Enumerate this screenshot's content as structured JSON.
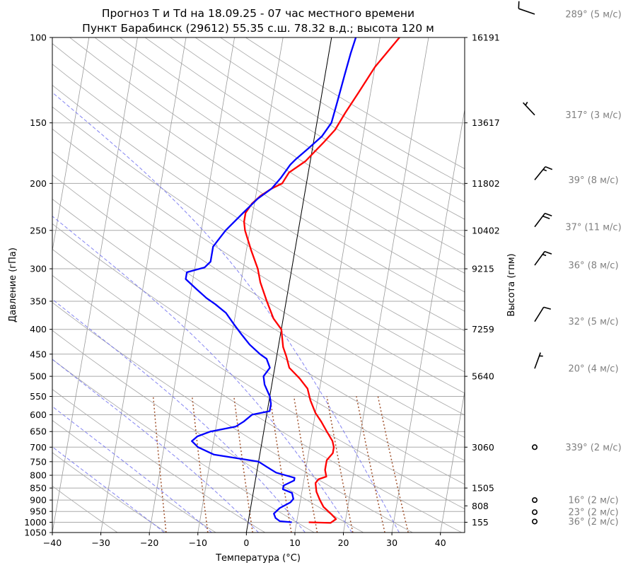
{
  "chart_data": {
    "type": "line",
    "diagram": "skew-T log-P",
    "title": "Прогноз T и Td на 18.09.25 - 07 час местного времени",
    "subtitle": "Пункт Барабинск (29612) 55.35 с.ш. 78.32 в.д.; высота 120 м",
    "xlabel": "Температура (°C)",
    "ylabel": "Давление (гПа)",
    "y2label": "Высота (гпм)",
    "xlim": [
      -40,
      45
    ],
    "ylim": [
      1050,
      100
    ],
    "y_scale": "log",
    "grid": true,
    "x_ticks": [
      -40,
      -30,
      -20,
      -10,
      0,
      10,
      20,
      30,
      40
    ],
    "y_ticks": [
      100,
      150,
      200,
      250,
      300,
      350,
      400,
      450,
      500,
      550,
      600,
      650,
      700,
      750,
      800,
      850,
      900,
      950,
      1000,
      1050
    ],
    "height_ticks": [
      {
        "p": 1000,
        "label": "155"
      },
      {
        "p": 925,
        "label": "808"
      },
      {
        "p": 850,
        "label": "1505"
      },
      {
        "p": 700,
        "label": "3060"
      },
      {
        "p": 500,
        "label": "5640"
      },
      {
        "p": 400,
        "label": "7259"
      },
      {
        "p": 300,
        "label": "9215"
      },
      {
        "p": 250,
        "label": "10402"
      },
      {
        "p": 200,
        "label": "11802"
      },
      {
        "p": 150,
        "label": "13617"
      },
      {
        "p": 100,
        "label": "16191"
      }
    ],
    "series": [
      {
        "color": "#ff0000",
        "points": [
          {
            "p": 1000,
            "t": 12.5
          },
          {
            "p": 1003,
            "t": 17.0
          },
          {
            "p": 985,
            "t": 18.0
          },
          {
            "p": 965,
            "t": 17.0
          },
          {
            "p": 930,
            "t": 15.0
          },
          {
            "p": 900,
            "t": 14.0
          },
          {
            "p": 865,
            "t": 13.0
          },
          {
            "p": 830,
            "t": 12.5
          },
          {
            "p": 815,
            "t": 13.0
          },
          {
            "p": 805,
            "t": 14.5
          },
          {
            "p": 780,
            "t": 14.0
          },
          {
            "p": 760,
            "t": 14.0
          },
          {
            "p": 745,
            "t": 14.0
          },
          {
            "p": 720,
            "t": 15.0
          },
          {
            "p": 700,
            "t": 15.0
          },
          {
            "p": 680,
            "t": 14.5
          },
          {
            "p": 650,
            "t": 13.0
          },
          {
            "p": 620,
            "t": 11.5
          },
          {
            "p": 595,
            "t": 10.0
          },
          {
            "p": 560,
            "t": 8.5
          },
          {
            "p": 530,
            "t": 7.5
          },
          {
            "p": 505,
            "t": 5.5
          },
          {
            "p": 480,
            "t": 3.0
          },
          {
            "p": 455,
            "t": 2.0
          },
          {
            "p": 435,
            "t": 1.0
          },
          {
            "p": 400,
            "t": 0.0
          },
          {
            "p": 380,
            "t": -2.0
          },
          {
            "p": 350,
            "t": -4.0
          },
          {
            "p": 320,
            "t": -6.0
          },
          {
            "p": 300,
            "t": -7.0
          },
          {
            "p": 275,
            "t": -9.0
          },
          {
            "p": 250,
            "t": -11.0
          },
          {
            "p": 240,
            "t": -11.5
          },
          {
            "p": 230,
            "t": -11.5
          },
          {
            "p": 220,
            "t": -10.5
          },
          {
            "p": 212,
            "t": -9.0
          },
          {
            "p": 205,
            "t": -7.0
          },
          {
            "p": 200,
            "t": -5.0
          },
          {
            "p": 190,
            "t": -4.0
          },
          {
            "p": 180,
            "t": -1.0
          },
          {
            "p": 165,
            "t": 2.0
          },
          {
            "p": 155,
            "t": 4.0
          },
          {
            "p": 143,
            "t": 5.5
          },
          {
            "p": 130,
            "t": 7.5
          },
          {
            "p": 115,
            "t": 10.0
          },
          {
            "p": 100,
            "t": 14.0
          }
        ]
      },
      {
        "color": "#0000ff",
        "points": [
          {
            "p": 1000,
            "t": 9.0
          },
          {
            "p": 995,
            "t": 6.5
          },
          {
            "p": 980,
            "t": 5.5
          },
          {
            "p": 960,
            "t": 5.0
          },
          {
            "p": 935,
            "t": 6.0
          },
          {
            "p": 910,
            "t": 8.0
          },
          {
            "p": 895,
            "t": 8.5
          },
          {
            "p": 870,
            "t": 8.0
          },
          {
            "p": 855,
            "t": 6.0
          },
          {
            "p": 840,
            "t": 6.0
          },
          {
            "p": 820,
            "t": 8.0
          },
          {
            "p": 810,
            "t": 8.0
          },
          {
            "p": 790,
            "t": 4.0
          },
          {
            "p": 770,
            "t": 2.0
          },
          {
            "p": 750,
            "t": 0.0
          },
          {
            "p": 725,
            "t": -9.5
          },
          {
            "p": 700,
            "t": -13.0
          },
          {
            "p": 680,
            "t": -14.5
          },
          {
            "p": 665,
            "t": -13.5
          },
          {
            "p": 650,
            "t": -11.0
          },
          {
            "p": 635,
            "t": -6.0
          },
          {
            "p": 620,
            "t": -4.5
          },
          {
            "p": 600,
            "t": -3.0
          },
          {
            "p": 590,
            "t": 0.5
          },
          {
            "p": 570,
            "t": 0.5
          },
          {
            "p": 550,
            "t": 0.0
          },
          {
            "p": 520,
            "t": -1.5
          },
          {
            "p": 500,
            "t": -2.0
          },
          {
            "p": 480,
            "t": -1.0
          },
          {
            "p": 460,
            "t": -2.0
          },
          {
            "p": 450,
            "t": -3.5
          },
          {
            "p": 430,
            "t": -6.0
          },
          {
            "p": 410,
            "t": -8.0
          },
          {
            "p": 390,
            "t": -10.0
          },
          {
            "p": 370,
            "t": -12.0
          },
          {
            "p": 355,
            "t": -14.5
          },
          {
            "p": 345,
            "t": -16.5
          },
          {
            "p": 330,
            "t": -19.0
          },
          {
            "p": 315,
            "t": -21.5
          },
          {
            "p": 305,
            "t": -21.5
          },
          {
            "p": 298,
            "t": -18.0
          },
          {
            "p": 290,
            "t": -17.0
          },
          {
            "p": 270,
            "t": -17.0
          },
          {
            "p": 250,
            "t": -15.0
          },
          {
            "p": 230,
            "t": -12.0
          },
          {
            "p": 215,
            "t": -9.5
          },
          {
            "p": 205,
            "t": -7.0
          },
          {
            "p": 195,
            "t": -5.5
          },
          {
            "p": 183,
            "t": -4.0
          },
          {
            "p": 178,
            "t": -3.0
          },
          {
            "p": 170,
            "t": -1.0
          },
          {
            "p": 160,
            "t": 1.5
          },
          {
            "p": 150,
            "t": 3.0
          },
          {
            "p": 135,
            "t": 3.5
          },
          {
            "p": 120,
            "t": 4.0
          },
          {
            "p": 108,
            "t": 4.5
          },
          {
            "p": 100,
            "t": 5.0
          }
        ]
      }
    ],
    "wind": [
      {
        "p": 1000,
        "dir": 36,
        "speed": 2,
        "label": "36° (2 м/с)"
      },
      {
        "p": 950,
        "dir": 23,
        "speed": 2,
        "label": "23° (2 м/с)"
      },
      {
        "p": 900,
        "dir": 16,
        "speed": 2,
        "label": "16° (2 м/с)"
      },
      {
        "p": 700,
        "dir": 339,
        "speed": 2,
        "label": "339° (2 м/с)"
      },
      {
        "p": 500,
        "dir": 20,
        "speed": 4,
        "label": "20° (4 м/с)"
      },
      {
        "p": 400,
        "dir": 32,
        "speed": 5,
        "label": "32° (5 м/с)"
      },
      {
        "p": 300,
        "dir": 36,
        "speed": 8,
        "label": "36° (8 м/с)"
      },
      {
        "p": 250,
        "dir": 37,
        "speed": 11,
        "label": "37° (11 м/с)"
      },
      {
        "p": 200,
        "dir": 39,
        "speed": 8,
        "label": "39° (8 м/с)"
      },
      {
        "p": 150,
        "dir": 317,
        "speed": 3,
        "label": "317° (3 м/с)"
      },
      {
        "p": 100,
        "dir": 289,
        "speed": 5,
        "label": "289° (5 м/с)"
      }
    ],
    "colors": {
      "temperature": "#ff0000",
      "dewpoint": "#0000ff",
      "grid": "#aaaaaa",
      "isotherms": "#9a9a9a",
      "dry_adiabats": "#a6a6a6",
      "moist_adiabats": "#6f6ff0",
      "mixing_ratio": "#a0522d",
      "zero_isotherm": "#000000",
      "wind_label": "#808080"
    }
  }
}
